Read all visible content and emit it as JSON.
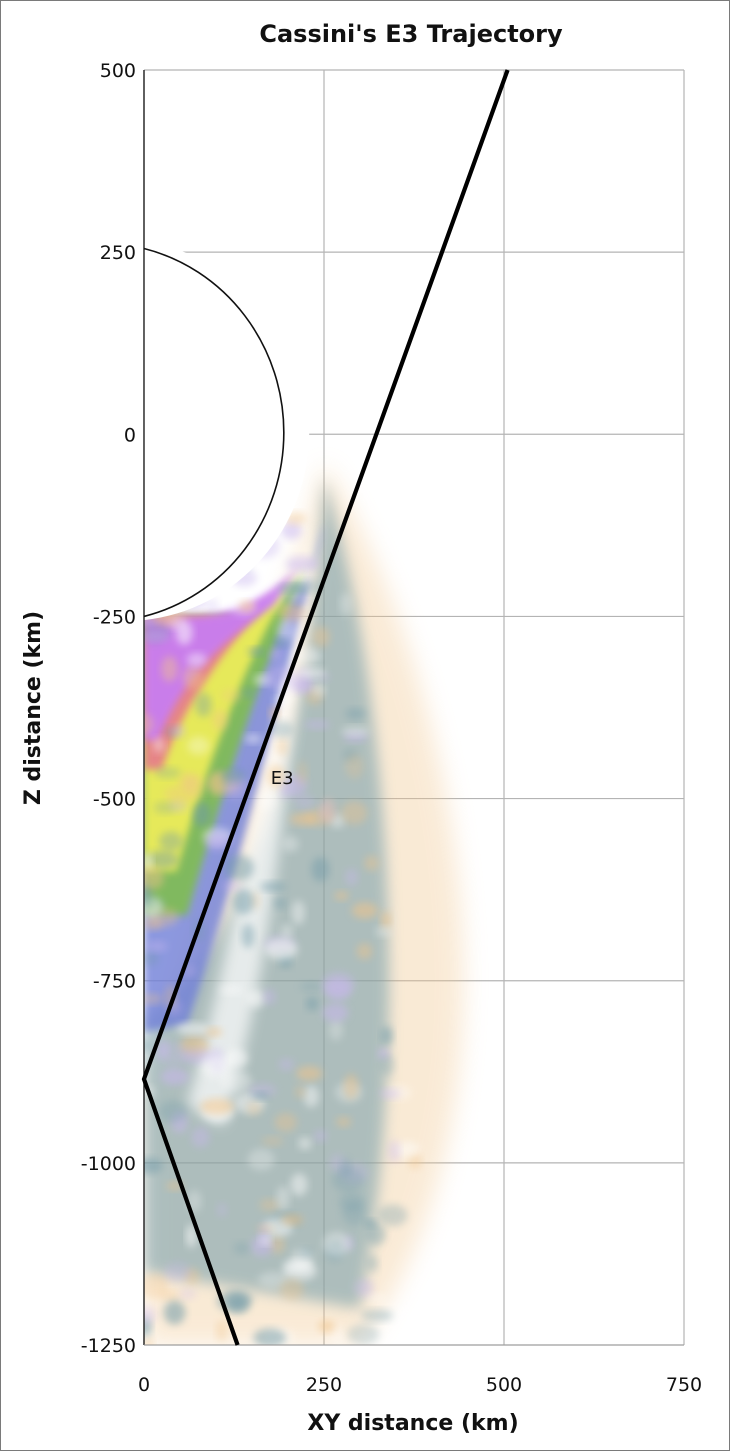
{
  "chart_data": {
    "type": "line",
    "title": "Cassini's E3 Trajectory",
    "xlabel": "XY distance (km)",
    "ylabel": "Z distance (km)",
    "xlim": [
      0,
      750
    ],
    "ylim": [
      -1250,
      500
    ],
    "xticks": [
      0,
      250,
      500,
      750
    ],
    "yticks": [
      500,
      250,
      0,
      -250,
      -500,
      -750,
      -1000,
      -1250
    ],
    "grid": true,
    "series": [
      {
        "name": "E3",
        "points": [
          [
            505,
            500
          ],
          [
            0,
            -885
          ],
          [
            130,
            -1250
          ]
        ]
      }
    ],
    "annotations": [
      {
        "text": "E3",
        "x": 190,
        "y": -480
      }
    ],
    "colors": {
      "trajectory": "#000000",
      "grid": "#b4b4b4",
      "plume_purple": "#c77df5",
      "plume_red": "#e55a9a",
      "plume_yellow": "#ecec5a",
      "plume_green": "#7fbf4a",
      "plume_blue": "#6f7fd8",
      "plume_teal": "#6f9aa8",
      "plume_orange": "#f0c48a"
    }
  }
}
